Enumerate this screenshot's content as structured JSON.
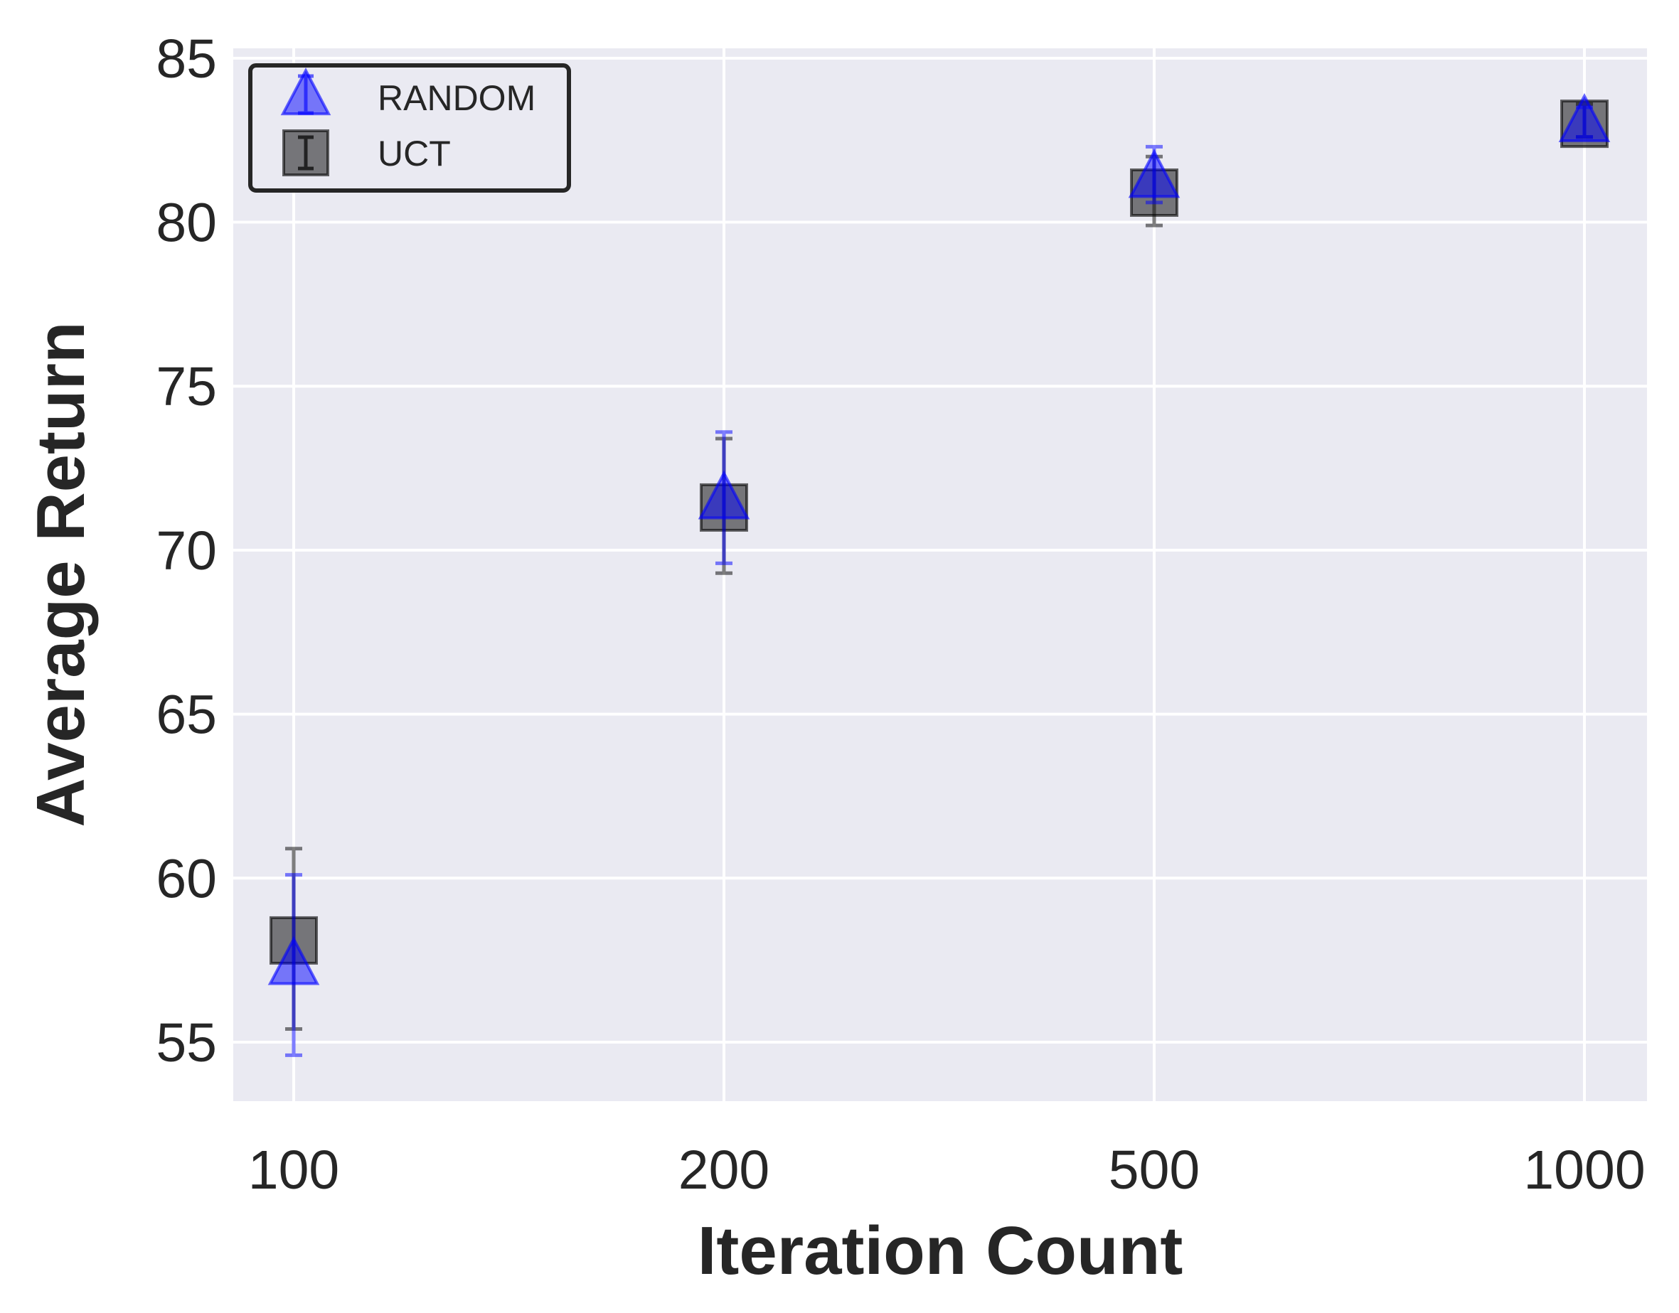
{
  "chart_data": {
    "type": "scatter",
    "xlabel": "Iteration Count",
    "ylabel": "Average Return",
    "categories": [
      "100",
      "200",
      "500",
      "1000"
    ],
    "x_scale": "categorical",
    "y_ticks": [
      "55",
      "60",
      "65",
      "70",
      "75",
      "80",
      "85"
    ],
    "ylim": [
      53.2,
      85.3
    ],
    "grid": true,
    "legend_position": "top-left",
    "series": [
      {
        "name": "RANDOM",
        "marker": "triangle",
        "color": "#0000ff",
        "values": [
          57.3,
          71.5,
          81.3,
          83.0
        ],
        "error_low": [
          54.6,
          69.6,
          80.6,
          82.6
        ],
        "error_high": [
          60.1,
          73.6,
          82.3,
          83.5
        ]
      },
      {
        "name": "UCT",
        "marker": "square",
        "color": "#000000",
        "values": [
          58.1,
          71.3,
          80.9,
          83.0
        ],
        "error_low": [
          55.4,
          69.3,
          79.9,
          82.6
        ],
        "error_high": [
          60.9,
          73.4,
          82.0,
          83.6
        ]
      }
    ]
  }
}
